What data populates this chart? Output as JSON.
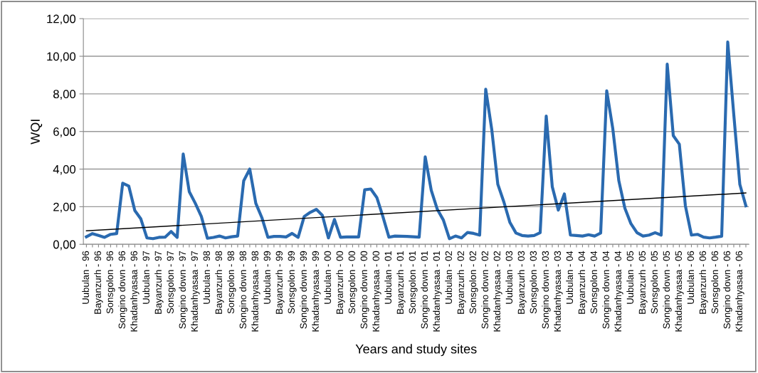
{
  "chart_data": {
    "type": "line",
    "xlabel": "Years and study sites",
    "ylabel": "WQI",
    "categories": [
      "Uubulan - 96",
      null,
      "Bayanzurh - 96",
      null,
      "Sonsgolon - 96",
      null,
      "Songino down - 96",
      null,
      "Khadanhyasaa - 96",
      null,
      "Uubulan - 97",
      null,
      "Bayanzurh - 97",
      null,
      "Sonsgolon - 97",
      null,
      "Songino down - 97",
      null,
      "Khadanhyasaa - 97",
      null,
      "Uubulan - 98",
      null,
      "Bayanzurh - 98",
      null,
      "Sonsgolon - 98",
      null,
      "Songino down - 98",
      null,
      "Khadanhyasaa - 98",
      null,
      "Uubulan - 99",
      null,
      "Bayanzurh - 99",
      null,
      "Sonsgolon - 99",
      null,
      "Songino down - 99",
      null,
      "Khadanhyasaa - 99",
      null,
      "Uubulan - 00",
      null,
      "Bayanzurh - 00",
      null,
      "Sonsgolon - 00",
      null,
      "Songino down - 00",
      null,
      "Khadanhyasaa - 00",
      null,
      "Uubulan - 01",
      null,
      "Bayanzurh - 01",
      null,
      "Sonsgolon - 01",
      null,
      "Songino down - 01",
      null,
      "Khadanhyasaa - 01",
      null,
      "Uubulan - 02",
      null,
      "Bayanzurh - 02",
      null,
      "Sonsgolon - 02",
      null,
      "Songino down - 02",
      null,
      "Khadanhyasaa - 02",
      null,
      "Uubulan - 03",
      null,
      "Bayanzurh - 03",
      null,
      "Sonsgolon - 03",
      null,
      "Songino down - 03",
      null,
      "Khadanhyasaa - 03",
      null,
      "Uubulan - 04",
      null,
      "Bayanzurh - 04",
      null,
      "Sonsgolon - 04",
      null,
      "Songino down - 04",
      null,
      "Khadanhyasaa - 04",
      null,
      "Uubulan - 05",
      null,
      "Bayanzurh - 05",
      null,
      "Sonsgolon - 05",
      null,
      "Songino down - 05",
      null,
      "Khadanhyasaa - 05",
      null,
      "Uubulan - 06",
      null,
      "Bayanzurh - 06",
      null,
      "Sonsgolon - 06",
      null,
      "Songino down - 06",
      null,
      "Khadanhyasaa - 06",
      null
    ],
    "series": [
      {
        "color": "#2a6ab0",
        "values": [
          0.4,
          0.57,
          0.47,
          0.37,
          0.53,
          0.57,
          3.25,
          3.1,
          1.8,
          1.35,
          0.34,
          0.3,
          0.37,
          0.38,
          0.68,
          0.37,
          4.8,
          2.8,
          2.18,
          1.48,
          0.32,
          0.37,
          0.44,
          0.34,
          0.4,
          0.44,
          3.38,
          4.0,
          2.18,
          1.42,
          0.37,
          0.42,
          0.42,
          0.39,
          0.58,
          0.37,
          1.48,
          1.7,
          1.86,
          1.54,
          0.34,
          1.32,
          0.37,
          0.39,
          0.39,
          0.39,
          2.9,
          2.94,
          2.49,
          1.48,
          0.38,
          0.44,
          0.43,
          0.42,
          0.4,
          0.38,
          4.65,
          2.87,
          1.86,
          1.29,
          0.3,
          0.44,
          0.34,
          0.63,
          0.58,
          0.49,
          8.25,
          6.1,
          3.19,
          2.25,
          1.16,
          0.6,
          0.47,
          0.44,
          0.47,
          0.62,
          6.82,
          3.06,
          1.82,
          2.68,
          0.49,
          0.47,
          0.44,
          0.51,
          0.44,
          0.6,
          8.16,
          6.16,
          3.38,
          1.92,
          1.1,
          0.62,
          0.44,
          0.49,
          0.62,
          0.49,
          9.58,
          5.78,
          5.32,
          2.05,
          0.49,
          0.53,
          0.38,
          0.34,
          0.38,
          0.43,
          10.76,
          6.9,
          3.19,
          2.05
        ]
      },
      {
        "type": "line",
        "color": "#000000",
        "values": [
          0.72,
          null,
          null,
          null,
          null,
          null,
          null,
          null,
          null,
          null,
          null,
          null,
          null,
          null,
          null,
          null,
          null,
          null,
          null,
          null,
          null,
          null,
          null,
          null,
          null,
          null,
          null,
          null,
          null,
          null,
          null,
          null,
          null,
          null,
          null,
          null,
          null,
          null,
          null,
          null,
          null,
          null,
          null,
          null,
          null,
          null,
          null,
          null,
          null,
          null,
          null,
          null,
          null,
          null,
          null,
          null,
          null,
          null,
          null,
          null,
          null,
          null,
          null,
          null,
          null,
          null,
          null,
          null,
          null,
          null,
          null,
          null,
          null,
          null,
          null,
          null,
          null,
          null,
          null,
          null,
          null,
          null,
          null,
          null,
          null,
          null,
          null,
          null,
          null,
          null,
          null,
          null,
          null,
          null,
          null,
          null,
          null,
          null,
          null,
          null,
          null,
          null,
          null,
          null,
          null,
          null,
          null,
          null,
          null,
          2.73
        ]
      }
    ],
    "ylim": [
      0,
      12
    ],
    "yticks": [
      {
        "value": 0,
        "label": "0,00"
      },
      {
        "value": 2,
        "label": "2,00"
      },
      {
        "value": 4,
        "label": "4,00"
      },
      {
        "value": 6,
        "label": "6,00"
      },
      {
        "value": 8,
        "label": "8,00"
      },
      {
        "value": 10,
        "label": "10,00"
      },
      {
        "value": 12,
        "label": "12,00"
      }
    ],
    "grid": "y"
  }
}
